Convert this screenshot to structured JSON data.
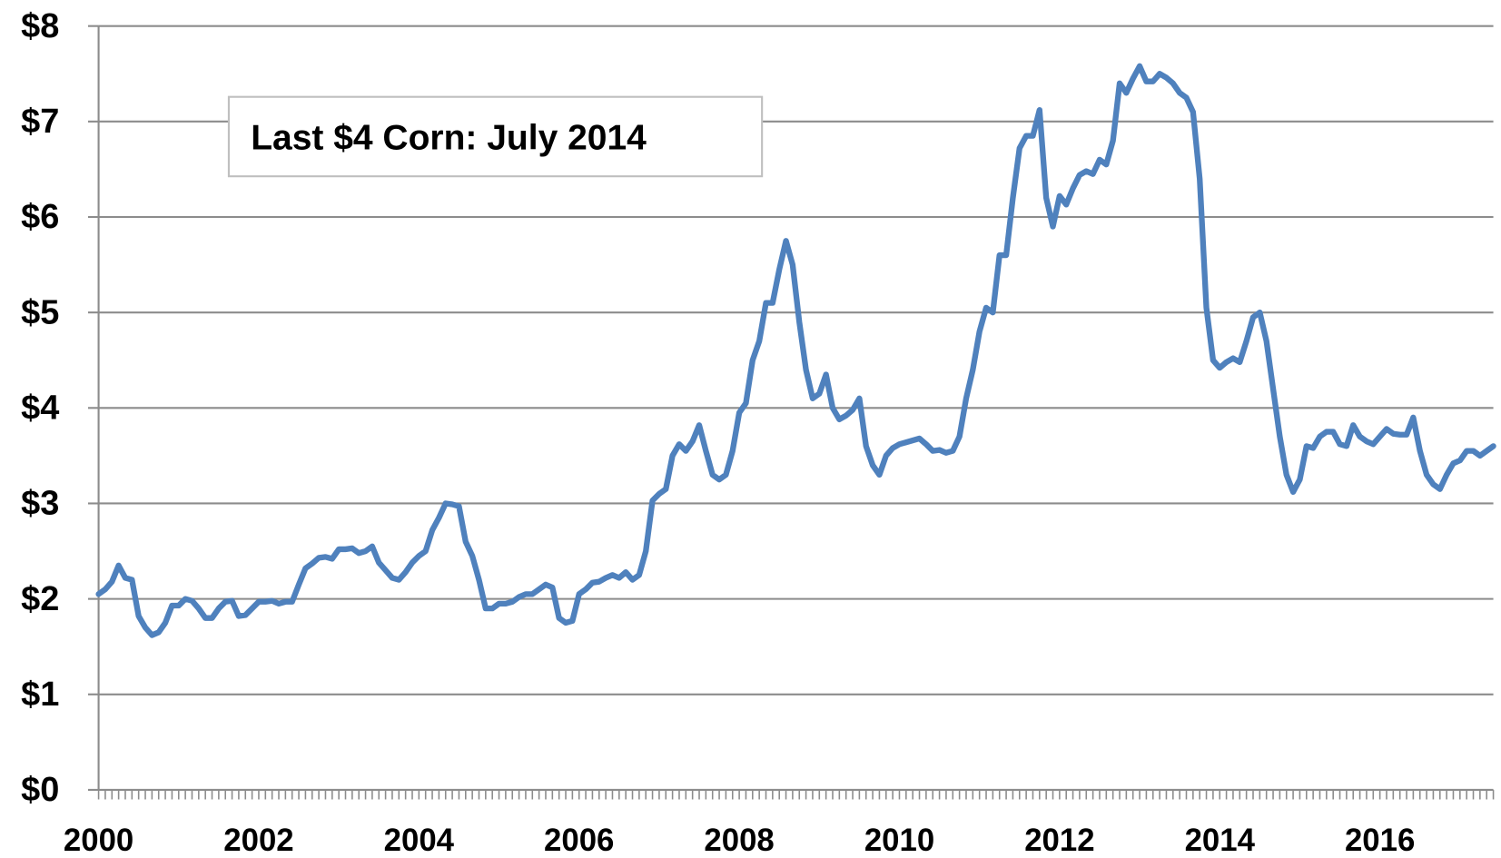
{
  "chart_data": {
    "type": "line",
    "annotation": "Last $4 Corn: July 2014",
    "color": "#4f81bd",
    "grid": true,
    "categories": [
      "2000",
      null,
      null,
      null,
      null,
      null,
      null,
      null,
      null,
      null,
      null,
      null,
      null,
      null,
      null,
      null,
      null,
      null,
      null,
      null,
      null,
      null,
      null,
      null,
      "2002",
      null,
      null,
      null,
      null,
      null,
      null,
      null,
      null,
      null,
      null,
      null,
      null,
      null,
      null,
      null,
      null,
      null,
      null,
      null,
      null,
      null,
      null,
      null,
      "2004",
      null,
      null,
      null,
      null,
      null,
      null,
      null,
      null,
      null,
      null,
      null,
      null,
      null,
      null,
      null,
      null,
      null,
      null,
      null,
      null,
      null,
      null,
      null,
      "2006",
      null,
      null,
      null,
      null,
      null,
      null,
      null,
      null,
      null,
      null,
      null,
      null,
      null,
      null,
      null,
      null,
      null,
      null,
      null,
      null,
      null,
      null,
      null,
      "2008",
      null,
      null,
      null,
      null,
      null,
      null,
      null,
      null,
      null,
      null,
      null,
      null,
      null,
      null,
      null,
      null,
      null,
      null,
      null,
      null,
      null,
      null,
      null,
      "2010",
      null,
      null,
      null,
      null,
      null,
      null,
      null,
      null,
      null,
      null,
      null,
      null,
      null,
      null,
      null,
      null,
      null,
      null,
      null,
      null,
      null,
      null,
      null,
      "2012",
      null,
      null,
      null,
      null,
      null,
      null,
      null,
      null,
      null,
      null,
      null,
      null,
      null,
      null,
      null,
      null,
      null,
      null,
      null,
      null,
      null,
      null,
      null,
      "2014",
      null,
      null,
      null,
      null,
      null,
      null,
      null,
      null,
      null,
      null,
      null,
      null,
      null,
      null,
      null,
      null,
      null,
      null,
      null,
      null,
      null,
      null,
      null,
      "2016",
      null,
      null,
      null,
      null,
      null,
      null,
      null,
      null,
      null,
      null,
      null,
      null,
      null,
      null,
      null,
      null,
      null
    ],
    "values": [
      2.05,
      2.1,
      2.18,
      2.35,
      2.22,
      2.2,
      1.82,
      1.7,
      1.62,
      1.65,
      1.75,
      1.93,
      1.93,
      2.0,
      1.98,
      1.9,
      1.8,
      1.8,
      1.9,
      1.97,
      1.98,
      1.82,
      1.83,
      1.9,
      1.97,
      1.97,
      1.98,
      1.95,
      1.97,
      1.97,
      2.15,
      2.32,
      2.37,
      2.43,
      2.44,
      2.42,
      2.52,
      2.52,
      2.53,
      2.48,
      2.5,
      2.55,
      2.38,
      2.3,
      2.22,
      2.2,
      2.28,
      2.38,
      2.45,
      2.5,
      2.72,
      2.85,
      3.0,
      2.99,
      2.97,
      2.6,
      2.45,
      2.2,
      1.9,
      1.9,
      1.95,
      1.95,
      1.97,
      2.02,
      2.05,
      2.05,
      2.1,
      2.15,
      2.12,
      1.8,
      1.75,
      1.77,
      2.05,
      2.1,
      2.17,
      2.18,
      2.22,
      2.25,
      2.22,
      2.28,
      2.2,
      2.25,
      2.5,
      3.03,
      3.1,
      3.15,
      3.5,
      3.62,
      3.55,
      3.65,
      3.82,
      3.55,
      3.3,
      3.25,
      3.3,
      3.55,
      3.95,
      4.05,
      4.5,
      4.7,
      5.1,
      5.1,
      5.45,
      5.75,
      5.5,
      4.9,
      4.4,
      4.1,
      4.15,
      4.35,
      4.0,
      3.88,
      3.92,
      3.98,
      4.1,
      3.6,
      3.4,
      3.3,
      3.5,
      3.58,
      3.62,
      3.64,
      3.66,
      3.68,
      3.62,
      3.55,
      3.56,
      3.53,
      3.55,
      3.7,
      4.1,
      4.4,
      4.8,
      5.05,
      5.0,
      5.6,
      5.6,
      6.2,
      6.72,
      6.85,
      6.85,
      7.12,
      6.2,
      5.9,
      6.22,
      6.13,
      6.3,
      6.44,
      6.48,
      6.45,
      6.6,
      6.55,
      6.8,
      7.4,
      7.3,
      7.45,
      7.58,
      7.42,
      7.42,
      7.5,
      7.46,
      7.4,
      7.3,
      7.25,
      7.1,
      6.4,
      5.05,
      4.5,
      4.42,
      4.48,
      4.52,
      4.48,
      4.7,
      4.95,
      5.0,
      4.7,
      4.2,
      3.7,
      3.3,
      3.12,
      3.25,
      3.6,
      3.58,
      3.7,
      3.75,
      3.75,
      3.62,
      3.6,
      3.82,
      3.7,
      3.65,
      3.62,
      3.7,
      3.78,
      3.73,
      3.72,
      3.72,
      3.9,
      3.55,
      3.3,
      3.2,
      3.15,
      3.3,
      3.42,
      3.45,
      3.55,
      3.55,
      3.5,
      3.55,
      3.6
    ],
    "ylim": [
      0,
      8
    ],
    "yticks": [
      {
        "value": 0,
        "label": "$0"
      },
      {
        "value": 1,
        "label": "$1"
      },
      {
        "value": 2,
        "label": "$2"
      },
      {
        "value": 3,
        "label": "$3"
      },
      {
        "value": 4,
        "label": "$4"
      },
      {
        "value": 5,
        "label": "$5"
      },
      {
        "value": 6,
        "label": "$6"
      },
      {
        "value": 7,
        "label": "$7"
      },
      {
        "value": 8,
        "label": "$8"
      }
    ]
  }
}
